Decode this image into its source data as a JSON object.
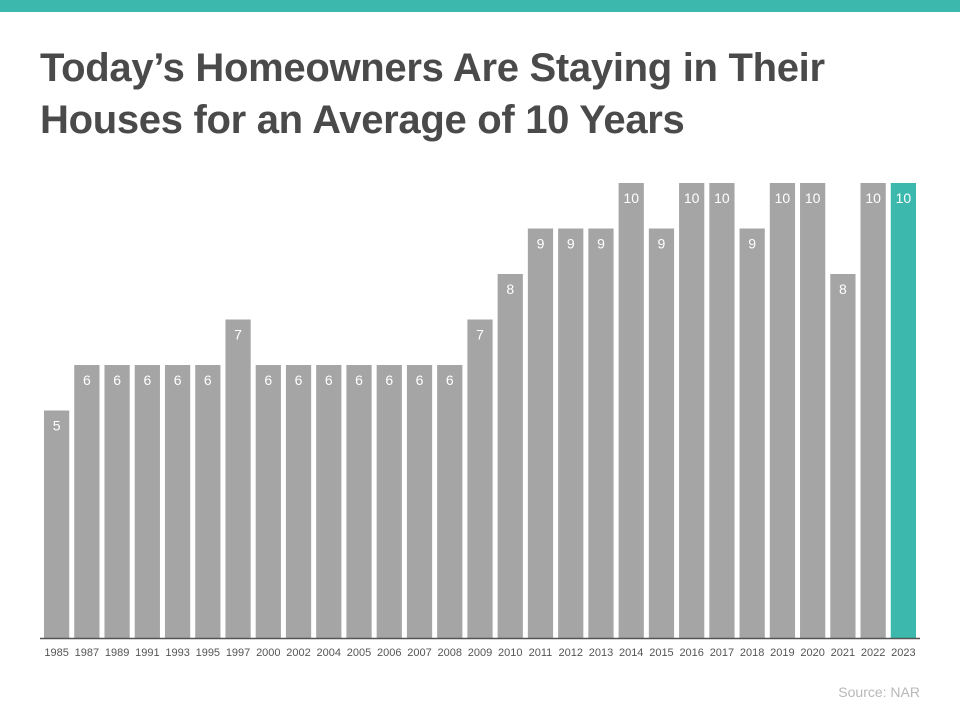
{
  "header": {
    "title_line1": "Today’s Homeowners Are Staying in Their",
    "title_line2": "Houses for an Average of 10 Years"
  },
  "footer": {
    "source": "Source: NAR"
  },
  "colors": {
    "accent": "#3cb8ad",
    "bar": "#a5a5a5",
    "axis": "#555555",
    "title": "#4a4a4a"
  },
  "chart_data": {
    "type": "bar",
    "title": "Today’s Homeowners Are Staying in Their Houses for an Average of 10 Years",
    "xlabel": "",
    "ylabel": "",
    "ylim": [
      0,
      10
    ],
    "grid": false,
    "legend": "none",
    "categories": [
      "1985",
      "1987",
      "1989",
      "1991",
      "1993",
      "1995",
      "1997",
      "2000",
      "2002",
      "2004",
      "2005",
      "2006",
      "2007",
      "2008",
      "2009",
      "2010",
      "2011",
      "2012",
      "2013",
      "2014",
      "2015",
      "2016",
      "2017",
      "2018",
      "2019",
      "2020",
      "2021",
      "2022",
      "2023"
    ],
    "values": [
      5,
      6,
      6,
      6,
      6,
      6,
      7,
      6,
      6,
      6,
      6,
      6,
      6,
      6,
      7,
      8,
      9,
      9,
      9,
      10,
      9,
      10,
      10,
      9,
      10,
      10,
      8,
      10,
      10
    ],
    "highlight_index": 28
  }
}
